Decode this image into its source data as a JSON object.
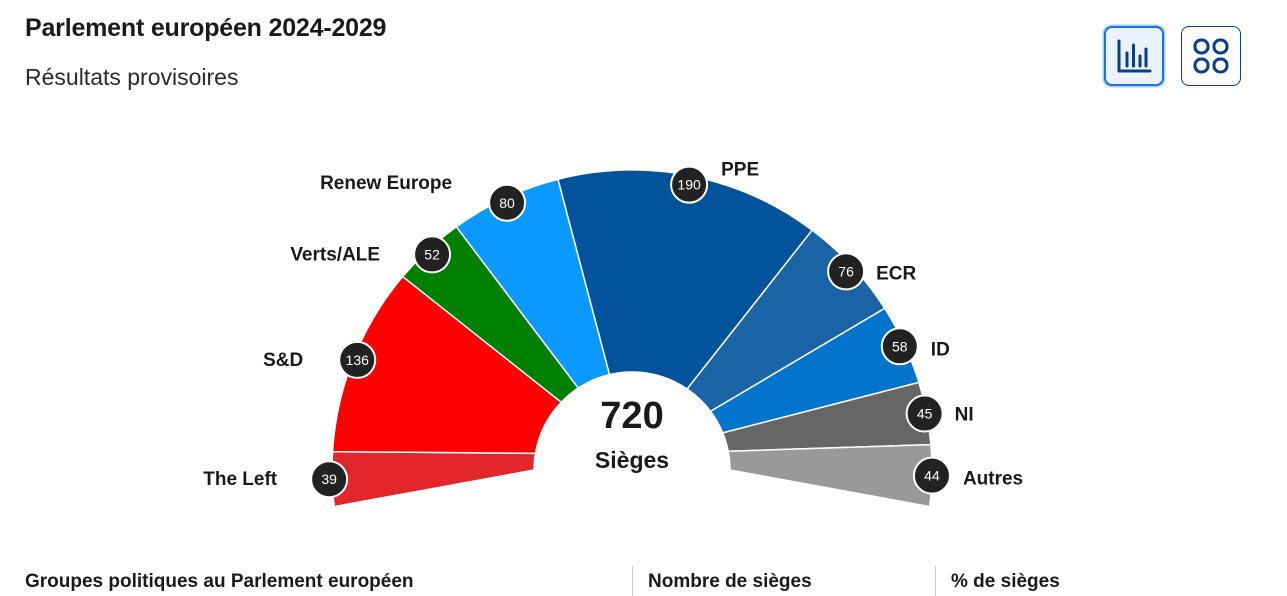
{
  "header": {
    "title": "Parlement européen 2024-2029",
    "subtitle": "Résultats provisoires"
  },
  "controls": {
    "chart_view_icon": "bar-chart-icon",
    "grid_view_icon": "grid-icon",
    "accent_color": "#1a73e8"
  },
  "chart_data": {
    "type": "pie",
    "variant": "parliament-semicircle",
    "total": 720,
    "total_label": "Sièges",
    "series": [
      {
        "name": "The Left",
        "value": 39,
        "color": "#e3262c"
      },
      {
        "name": "S&D",
        "value": 136,
        "color": "#ff0000"
      },
      {
        "name": "Verts/ALE",
        "value": 52,
        "color": "#008000"
      },
      {
        "name": "Renew Europe",
        "value": 80,
        "color": "#0b98ff"
      },
      {
        "name": "PPE",
        "value": 190,
        "color": "#02529c"
      },
      {
        "name": "ECR",
        "value": 76,
        "color": "#1a64a6"
      },
      {
        "name": "ID",
        "value": 58,
        "color": "#0274cc"
      },
      {
        "name": "NI",
        "value": 45,
        "color": "#666666"
      },
      {
        "name": "Autres",
        "value": 44,
        "color": "#999999"
      }
    ]
  },
  "table": {
    "columns": [
      "Groupes politiques au Parlement européen",
      "Nombre de sièges",
      "% de sièges"
    ]
  }
}
